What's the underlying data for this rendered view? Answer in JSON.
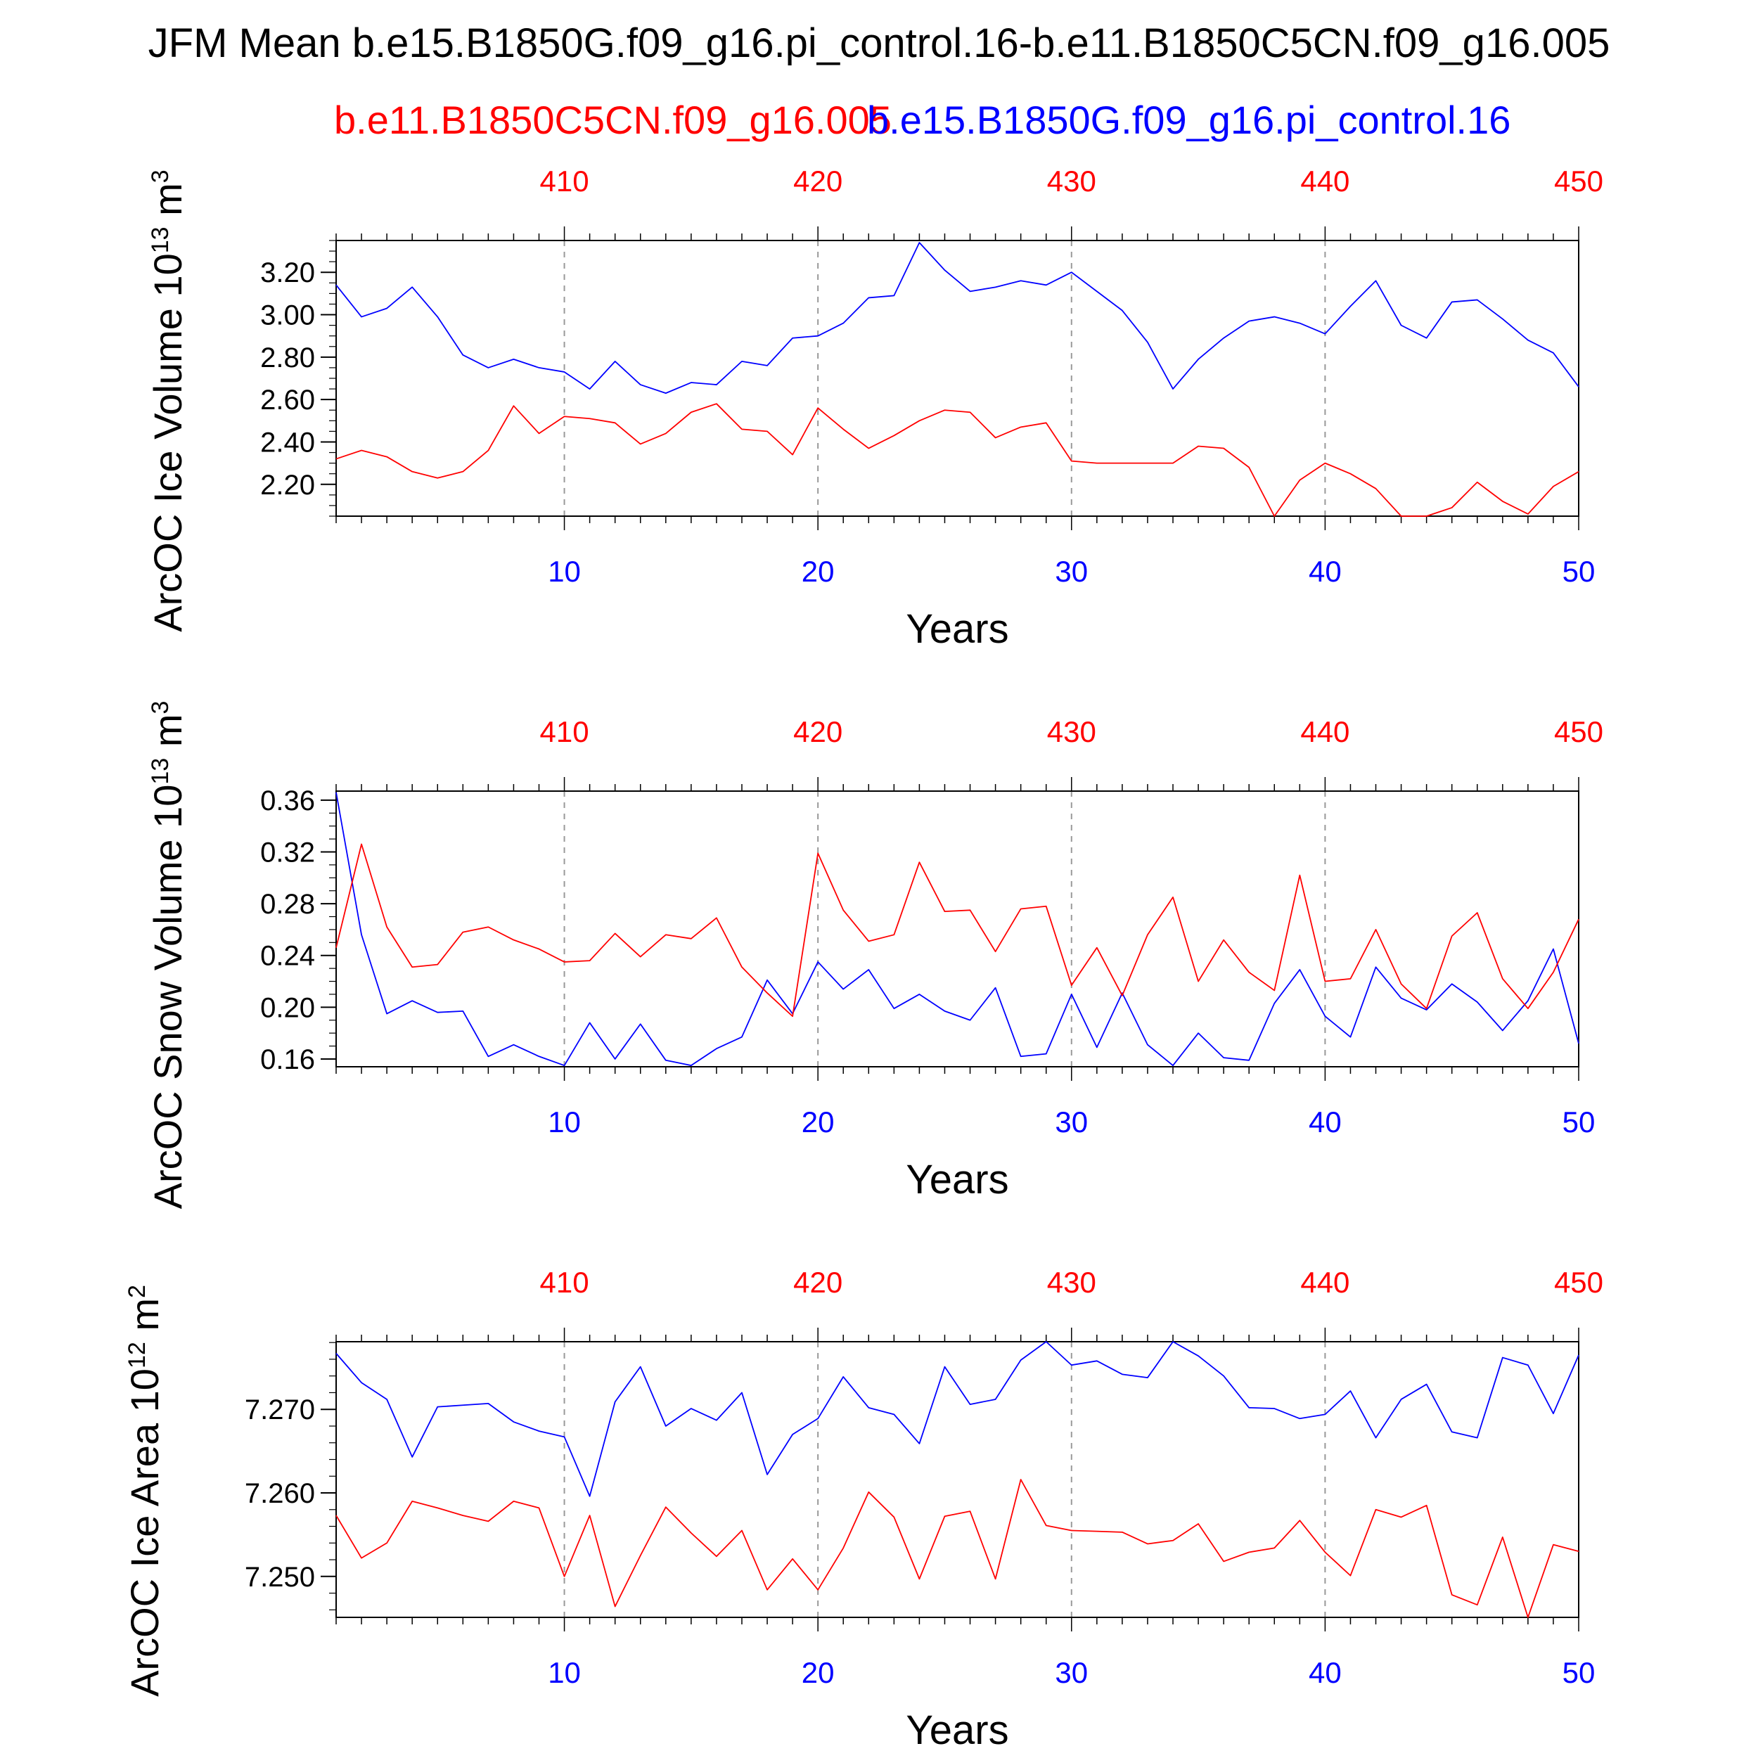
{
  "title": "JFM Mean b.e15.B1850G.f09_g16.pi_control.16-b.e11.B1850C5CN.f09_g16.005",
  "subtitle_left": "b.e11.B1850C5CN.f09_g16.005",
  "subtitle_right": "b.e15.B1850G.f09_g16.pi_control.16",
  "colors": {
    "case1": "#0000ff",
    "case2": "#ff0000",
    "grid": "#999999",
    "axis": "#000000"
  },
  "chart_data": [
    {
      "type": "line",
      "title": "",
      "xlabel": "Years",
      "ylabel": "ArcOC Ice Volume 10",
      "ylabel_exp": "13",
      "ylabel_unit": " m",
      "ylabel_unit_exp": "3",
      "x": [
        1,
        2,
        3,
        4,
        5,
        6,
        7,
        8,
        9,
        10,
        11,
        12,
        13,
        14,
        15,
        16,
        17,
        18,
        19,
        20,
        21,
        22,
        23,
        24,
        25,
        26,
        27,
        28,
        29,
        30,
        31,
        32,
        33,
        34,
        35,
        36,
        37,
        38,
        39,
        40,
        41,
        42,
        43,
        44,
        45,
        46,
        47,
        48,
        49,
        50
      ],
      "xlim": [
        1,
        50
      ],
      "ylim": [
        2.05,
        3.35
      ],
      "x_ticks": [
        10,
        20,
        30,
        40,
        50
      ],
      "x_tick_labels": [
        "10",
        "20",
        "30",
        "40",
        "50"
      ],
      "top_tick_labels": [
        "410",
        "420",
        "430",
        "440",
        "450"
      ],
      "y_ticks": [
        2.2,
        2.4,
        2.6,
        2.8,
        3.0,
        3.2
      ],
      "y_tick_labels": [
        "2.20",
        "2.40",
        "2.60",
        "2.80",
        "3.00",
        "3.20"
      ],
      "y_minor_step": 0.05,
      "series": [
        {
          "name": "b.e15.B1850G.f09_g16.pi_control.16",
          "color": "#0000ff",
          "values": [
            3.14,
            2.99,
            3.03,
            3.13,
            2.99,
            2.81,
            2.75,
            2.79,
            2.75,
            2.73,
            2.65,
            2.78,
            2.67,
            2.63,
            2.68,
            2.67,
            2.78,
            2.76,
            2.89,
            2.9,
            2.96,
            3.08,
            3.09,
            3.34,
            3.21,
            3.11,
            3.13,
            3.16,
            3.14,
            3.2,
            3.11,
            3.02,
            2.87,
            2.65,
            2.79,
            2.89,
            2.97,
            2.99,
            2.96,
            2.91,
            3.04,
            3.16,
            2.95,
            2.89,
            3.06,
            3.07,
            2.98,
            2.88,
            2.82,
            2.66
          ]
        },
        {
          "name": "b.e11.B1850C5CN.f09_g16.005",
          "color": "#ff0000",
          "values": [
            2.32,
            2.36,
            2.33,
            2.26,
            2.23,
            2.26,
            2.36,
            2.57,
            2.44,
            2.52,
            2.51,
            2.49,
            2.39,
            2.44,
            2.54,
            2.58,
            2.46,
            2.45,
            2.34,
            2.56,
            2.46,
            2.37,
            2.43,
            2.5,
            2.55,
            2.54,
            2.42,
            2.47,
            2.49,
            2.31,
            2.3,
            2.3,
            2.3,
            2.3,
            2.38,
            2.37,
            2.28,
            2.05,
            2.22,
            2.3,
            2.25,
            2.18,
            2.05,
            2.05,
            2.09,
            2.21,
            2.12,
            2.06,
            2.19,
            2.26
          ]
        }
      ]
    },
    {
      "type": "line",
      "title": "",
      "xlabel": "Years",
      "ylabel": "ArcOC Snow Volume 10",
      "ylabel_exp": "13",
      "ylabel_unit": " m",
      "ylabel_unit_exp": "3",
      "x": [
        1,
        2,
        3,
        4,
        5,
        6,
        7,
        8,
        9,
        10,
        11,
        12,
        13,
        14,
        15,
        16,
        17,
        18,
        19,
        20,
        21,
        22,
        23,
        24,
        25,
        26,
        27,
        28,
        29,
        30,
        31,
        32,
        33,
        34,
        35,
        36,
        37,
        38,
        39,
        40,
        41,
        42,
        43,
        44,
        45,
        46,
        47,
        48,
        49,
        50
      ],
      "xlim": [
        1,
        50
      ],
      "ylim": [
        0.154,
        0.367
      ],
      "x_ticks": [
        10,
        20,
        30,
        40,
        50
      ],
      "x_tick_labels": [
        "10",
        "20",
        "30",
        "40",
        "50"
      ],
      "top_tick_labels": [
        "410",
        "420",
        "430",
        "440",
        "450"
      ],
      "y_ticks": [
        0.16,
        0.2,
        0.24,
        0.28,
        0.32,
        0.36
      ],
      "y_tick_labels": [
        "0.16",
        "0.20",
        "0.24",
        "0.28",
        "0.32",
        "0.36"
      ],
      "y_minor_step": 0.01,
      "series": [
        {
          "name": "b.e15.B1850G.f09_g16.pi_control.16",
          "color": "#0000ff",
          "values": [
            0.366,
            0.256,
            0.195,
            0.205,
            0.196,
            0.197,
            0.162,
            0.171,
            0.162,
            0.155,
            0.188,
            0.16,
            0.187,
            0.159,
            0.155,
            0.168,
            0.177,
            0.221,
            0.195,
            0.235,
            0.214,
            0.229,
            0.199,
            0.21,
            0.197,
            0.19,
            0.215,
            0.162,
            0.164,
            0.21,
            0.169,
            0.211,
            0.171,
            0.155,
            0.18,
            0.161,
            0.159,
            0.203,
            0.229,
            0.193,
            0.177,
            0.231,
            0.207,
            0.198,
            0.218,
            0.204,
            0.182,
            0.205,
            0.245,
            0.172
          ]
        },
        {
          "name": "b.e11.B1850C5CN.f09_g16.005",
          "color": "#ff0000",
          "values": [
            0.246,
            0.326,
            0.262,
            0.231,
            0.233,
            0.258,
            0.262,
            0.252,
            0.245,
            0.235,
            0.236,
            0.257,
            0.239,
            0.256,
            0.253,
            0.269,
            0.231,
            0.211,
            0.193,
            0.319,
            0.275,
            0.251,
            0.256,
            0.312,
            0.274,
            0.275,
            0.243,
            0.276,
            0.278,
            0.217,
            0.246,
            0.209,
            0.256,
            0.285,
            0.22,
            0.252,
            0.227,
            0.213,
            0.302,
            0.22,
            0.222,
            0.26,
            0.218,
            0.199,
            0.255,
            0.273,
            0.222,
            0.199,
            0.227,
            0.268
          ]
        }
      ]
    },
    {
      "type": "line",
      "title": "",
      "xlabel": "Years",
      "ylabel": "ArcOC Ice Area 10",
      "ylabel_exp": "12",
      "ylabel_unit": " m",
      "ylabel_unit_exp": "2",
      "x": [
        1,
        2,
        3,
        4,
        5,
        6,
        7,
        8,
        9,
        10,
        11,
        12,
        13,
        14,
        15,
        16,
        17,
        18,
        19,
        20,
        21,
        22,
        23,
        24,
        25,
        26,
        27,
        28,
        29,
        30,
        31,
        32,
        33,
        34,
        35,
        36,
        37,
        38,
        39,
        40,
        41,
        42,
        43,
        44,
        45,
        46,
        47,
        48,
        49,
        50
      ],
      "xlim": [
        1,
        50
      ],
      "ylim": [
        7.2451,
        7.2781
      ],
      "x_ticks": [
        10,
        20,
        30,
        40,
        50
      ],
      "x_tick_labels": [
        "10",
        "20",
        "30",
        "40",
        "50"
      ],
      "top_tick_labels": [
        "410",
        "420",
        "430",
        "440",
        "450"
      ],
      "y_ticks": [
        7.25,
        7.26,
        7.27
      ],
      "y_tick_labels": [
        "7.250",
        "7.260",
        "7.270"
      ],
      "y_minor_step": 0.002,
      "series": [
        {
          "name": "b.e15.B1850G.f09_g16.pi_control.16",
          "color": "#0000ff",
          "values": [
            7.2767,
            7.2732,
            7.2712,
            7.2643,
            7.2703,
            7.2705,
            7.2707,
            7.2685,
            7.2674,
            7.2667,
            7.2596,
            7.2709,
            7.2751,
            7.268,
            7.2701,
            7.2687,
            7.272,
            7.2622,
            7.267,
            7.2689,
            7.2739,
            7.2702,
            7.2694,
            7.2659,
            7.2751,
            7.2706,
            7.2712,
            7.2759,
            7.2781,
            7.2753,
            7.2758,
            7.2742,
            7.2738,
            7.2781,
            7.2764,
            7.274,
            7.2702,
            7.2701,
            7.2689,
            7.2694,
            7.2722,
            7.2666,
            7.2712,
            7.273,
            7.2673,
            7.2666,
            7.2762,
            7.2753,
            7.2695,
            7.2765
          ]
        },
        {
          "name": "b.e11.B1850C5CN.f09_g16.005",
          "color": "#ff0000",
          "values": [
            7.2573,
            7.2522,
            7.254,
            7.259,
            7.2582,
            7.2573,
            7.2566,
            7.259,
            7.2582,
            7.25,
            7.2573,
            7.2464,
            7.2525,
            7.2583,
            7.2552,
            7.2524,
            7.2555,
            7.2484,
            7.2521,
            7.2484,
            7.2534,
            7.2601,
            7.2571,
            7.2497,
            7.2572,
            7.2578,
            7.2497,
            7.2616,
            7.2561,
            7.2555,
            7.2554,
            7.2553,
            7.2539,
            7.2543,
            7.2563,
            7.2518,
            7.2529,
            7.2534,
            7.2567,
            7.2529,
            7.2501,
            7.258,
            7.2571,
            7.2585,
            7.2478,
            7.2466,
            7.2547,
            7.2451,
            7.2538,
            7.253
          ]
        }
      ]
    }
  ]
}
